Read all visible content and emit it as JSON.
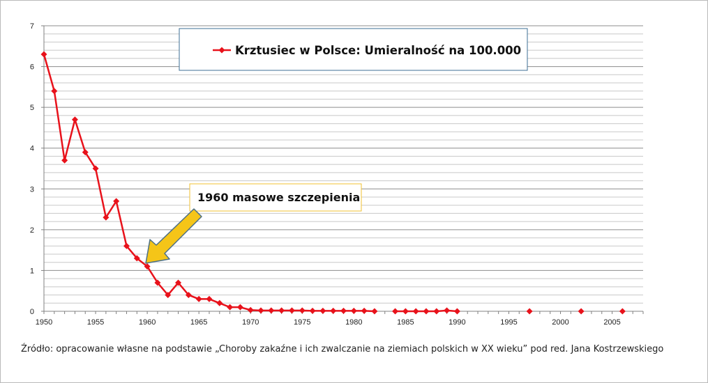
{
  "chart_data": {
    "type": "line",
    "legend_position": "top-center",
    "grid": true,
    "xlim": [
      1950,
      2008
    ],
    "ylim": [
      0,
      7
    ],
    "x_ticks": [
      "1950",
      "1955",
      "1960",
      "1965",
      "1970",
      "1975",
      "1980",
      "1985",
      "1990",
      "1995",
      "2000",
      "2005"
    ],
    "y_ticks": [
      "0",
      "1",
      "2",
      "3",
      "4",
      "5",
      "6",
      "7"
    ],
    "series": [
      {
        "name": "Krztusiec w Polsce: Umieralność na 100.000",
        "color": "#e8121b",
        "points": [
          [
            1950,
            6.3
          ],
          [
            1951,
            5.4
          ],
          [
            1952,
            3.7
          ],
          [
            1953,
            4.7
          ],
          [
            1954,
            3.9
          ],
          [
            1955,
            3.5
          ],
          [
            1956,
            2.3
          ],
          [
            1957,
            2.7
          ],
          [
            1958,
            1.6
          ],
          [
            1959,
            1.3
          ],
          [
            1960,
            1.1
          ],
          [
            1961,
            0.7
          ],
          [
            1962,
            0.4
          ],
          [
            1963,
            0.7
          ],
          [
            1964,
            0.4
          ],
          [
            1965,
            0.3
          ],
          [
            1966,
            0.3
          ],
          [
            1967,
            0.2
          ],
          [
            1968,
            0.1
          ],
          [
            1969,
            0.1
          ],
          [
            1970,
            0.03
          ],
          [
            1971,
            0.02
          ],
          [
            1972,
            0.02
          ],
          [
            1973,
            0.02
          ],
          [
            1974,
            0.02
          ],
          [
            1975,
            0.02
          ],
          [
            1976,
            0.01
          ],
          [
            1977,
            0.01
          ],
          [
            1978,
            0.01
          ],
          [
            1979,
            0.01
          ],
          [
            1980,
            0.01
          ],
          [
            1981,
            0.01
          ],
          [
            1982,
            0.0
          ],
          [
            1984,
            0.0
          ],
          [
            1985,
            0.0
          ],
          [
            1986,
            0.0
          ],
          [
            1987,
            0.0
          ],
          [
            1988,
            0.0
          ],
          [
            1989,
            0.02
          ],
          [
            1990,
            0.0
          ],
          [
            1997,
            0.0
          ],
          [
            2002,
            0.0
          ],
          [
            2006,
            0.0
          ]
        ]
      }
    ],
    "annotation": {
      "text": "1960 masowe szczepienia",
      "x": 1960,
      "y": 1.1
    }
  },
  "source_note": "Źródło:  opracowanie własne na podstawie „Choroby zakaźne i ich zwalczanie na ziemiach polskich w XX wieku” pod red. Jana Kostrzewskiego"
}
